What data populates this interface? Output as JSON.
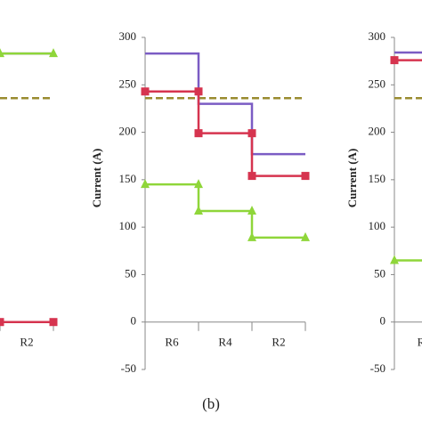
{
  "chart_data": [
    {
      "type": "step",
      "categories": [
        "R2"
      ],
      "ylim": [
        -50,
        300
      ],
      "series": [
        {
          "color": "#7b5cc4",
          "marker": "none",
          "values": [
            283
          ]
        },
        {
          "color": "#8fd63a",
          "marker": "triangle",
          "values": [
            283
          ]
        },
        {
          "color": "#d6344f",
          "marker": "square",
          "values": [
            0
          ]
        }
      ],
      "hlines": [
        {
          "value": 236,
          "color": "#9a8c30"
        }
      ]
    },
    {
      "type": "step",
      "categories": [
        "R6",
        "R4",
        "R2"
      ],
      "ylim": [
        -50,
        300
      ],
      "yticks": [
        -50,
        0,
        50,
        100,
        150,
        200,
        250,
        300
      ],
      "ylabel": "Current (A)",
      "series": [
        {
          "color": "#7b5cc4",
          "marker": "none",
          "values": [
            283,
            230,
            177
          ]
        },
        {
          "color": "#d6344f",
          "marker": "square",
          "values": [
            243,
            199,
            154
          ]
        },
        {
          "color": "#8fd63a",
          "marker": "triangle",
          "values": [
            145,
            117,
            89
          ]
        }
      ],
      "hlines": [
        {
          "value": 236,
          "color": "#9a8c30"
        }
      ]
    },
    {
      "type": "step",
      "categories": [
        "R"
      ],
      "ylim": [
        -50,
        300
      ],
      "yticks": [
        -50,
        0,
        50,
        100,
        150,
        200,
        250,
        300
      ],
      "ylabel": "Current (A)",
      "series": [
        {
          "color": "#7b5cc4",
          "marker": "none",
          "values": [
            284
          ]
        },
        {
          "color": "#d6344f",
          "marker": "square",
          "values": [
            276
          ]
        },
        {
          "color": "#8fd63a",
          "marker": "triangle",
          "values": [
            65
          ]
        }
      ],
      "hlines": [
        {
          "value": 236,
          "color": "#9a8c30"
        }
      ]
    }
  ],
  "caption": "(b)"
}
